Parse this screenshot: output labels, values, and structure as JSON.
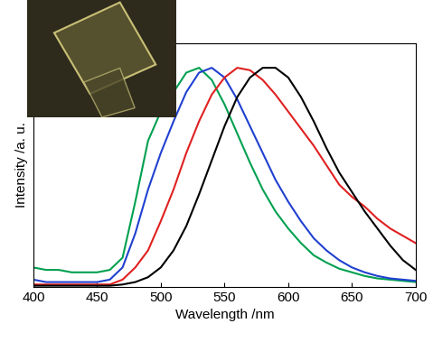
{
  "chart_data": {
    "type": "line",
    "x_label": "Wavelength /nm",
    "y_label": "Intensity /a. u.",
    "x": [
      400,
      410,
      420,
      430,
      440,
      450,
      460,
      470,
      480,
      490,
      500,
      510,
      520,
      530,
      540,
      550,
      560,
      570,
      580,
      590,
      600,
      610,
      620,
      630,
      640,
      650,
      660,
      670,
      680,
      690,
      700
    ],
    "series": [
      {
        "color": "#00a050",
        "values": [
          0.08,
          0.07,
          0.07,
          0.06,
          0.06,
          0.06,
          0.07,
          0.12,
          0.35,
          0.6,
          0.72,
          0.8,
          0.88,
          0.9,
          0.85,
          0.75,
          0.63,
          0.51,
          0.4,
          0.31,
          0.24,
          0.18,
          0.13,
          0.1,
          0.075,
          0.06,
          0.045,
          0.035,
          0.03,
          0.025,
          0.02
        ]
      },
      {
        "color": "#2040d0",
        "values": [
          0.03,
          0.02,
          0.02,
          0.02,
          0.02,
          0.02,
          0.03,
          0.08,
          0.22,
          0.4,
          0.55,
          0.68,
          0.8,
          0.88,
          0.9,
          0.86,
          0.77,
          0.66,
          0.55,
          0.44,
          0.35,
          0.27,
          0.2,
          0.15,
          0.11,
          0.08,
          0.06,
          0.045,
          0.035,
          0.03,
          0.025
        ]
      },
      {
        "color": "#e02020",
        "values": [
          0.01,
          0.01,
          0.01,
          0.01,
          0.01,
          0.01,
          0.01,
          0.03,
          0.08,
          0.15,
          0.27,
          0.4,
          0.55,
          0.68,
          0.79,
          0.86,
          0.9,
          0.89,
          0.85,
          0.79,
          0.72,
          0.65,
          0.58,
          0.5,
          0.42,
          0.37,
          0.33,
          0.28,
          0.24,
          0.21,
          0.18
        ]
      },
      {
        "color": "#000000",
        "values": [
          0.005,
          0.005,
          0.005,
          0.005,
          0.005,
          0.005,
          0.005,
          0.01,
          0.02,
          0.04,
          0.08,
          0.15,
          0.25,
          0.38,
          0.52,
          0.66,
          0.78,
          0.86,
          0.9,
          0.9,
          0.86,
          0.78,
          0.68,
          0.57,
          0.47,
          0.39,
          0.31,
          0.24,
          0.17,
          0.11,
          0.07
        ]
      }
    ],
    "xlim": [
      400,
      700
    ],
    "xticks": [
      400,
      450,
      500,
      550,
      600,
      650,
      700
    ],
    "ylim": [
      0,
      1
    ],
    "yticks": [],
    "tick_labels": "x"
  }
}
